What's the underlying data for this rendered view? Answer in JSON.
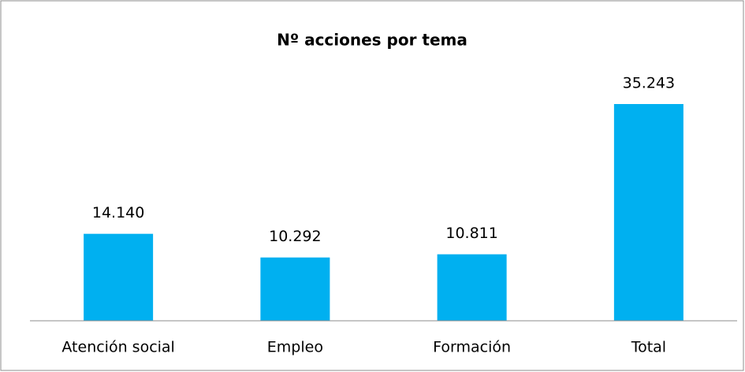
{
  "chart_data": {
    "type": "bar",
    "title": "Nº acciones por tema",
    "categories": [
      "Atención social",
      "Empleo",
      "Formación",
      "Total"
    ],
    "values": [
      14140,
      10292,
      10811,
      35243
    ],
    "value_labels": [
      "14.140",
      "10.292",
      "10.811",
      "35.243"
    ],
    "color": "#00b0f0"
  }
}
